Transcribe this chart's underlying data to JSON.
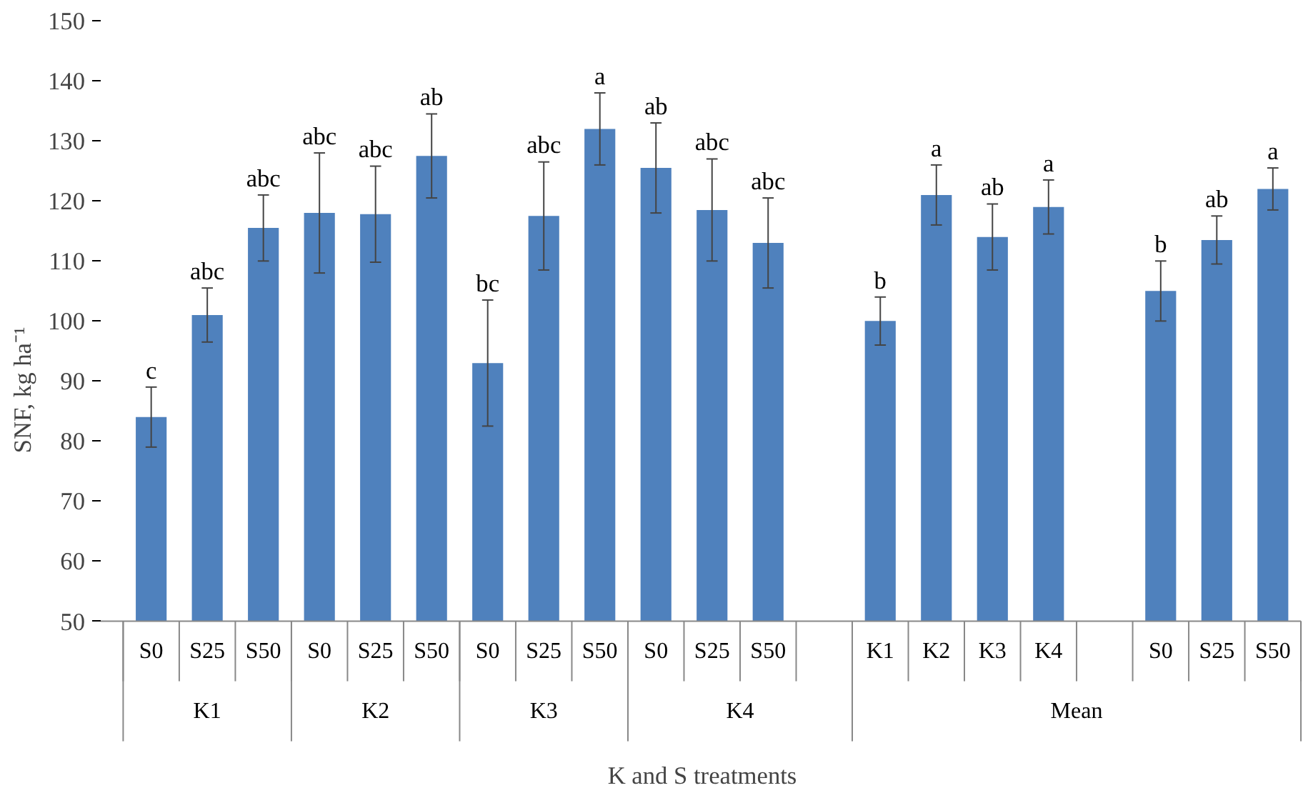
{
  "chart_data": {
    "type": "bar",
    "ylabel": "SNF, kg ha⁻¹",
    "xlabel": "K and S treatments",
    "categories": [
      "S0",
      "S25",
      "S50",
      "S0",
      "S25",
      "S50",
      "S0",
      "S25",
      "S50",
      "S0",
      "S25",
      "S50",
      null,
      "K1",
      "K2",
      "K3",
      "K4",
      null,
      "S0",
      "S25",
      "S50"
    ],
    "values": [
      84,
      101,
      115.5,
      118,
      117.8,
      127.5,
      93,
      117.5,
      132,
      125.5,
      118.5,
      113,
      null,
      100,
      121,
      114,
      119,
      null,
      105,
      113.5,
      122
    ],
    "errors": [
      5,
      4.5,
      5.5,
      10,
      8,
      7,
      10.5,
      9,
      6,
      7.5,
      8.5,
      7.5,
      null,
      4,
      5,
      5.5,
      4.5,
      null,
      5,
      4,
      3.5
    ],
    "value_labels": [
      "c",
      "abc",
      "abc",
      "abc",
      "abc",
      "ab",
      "bc",
      "abc",
      "a",
      "ab",
      "abc",
      "abc",
      null,
      "b",
      "a",
      "ab",
      "a",
      null,
      "b",
      "ab",
      "a"
    ],
    "color": "#4f81bd",
    "ylim": [
      50,
      150
    ],
    "yticks": [
      50,
      60,
      70,
      80,
      90,
      100,
      110,
      120,
      130,
      140,
      150
    ],
    "grid": false,
    "annotations": [
      "K1",
      "K2",
      "K3",
      "K4",
      "Mean"
    ]
  }
}
